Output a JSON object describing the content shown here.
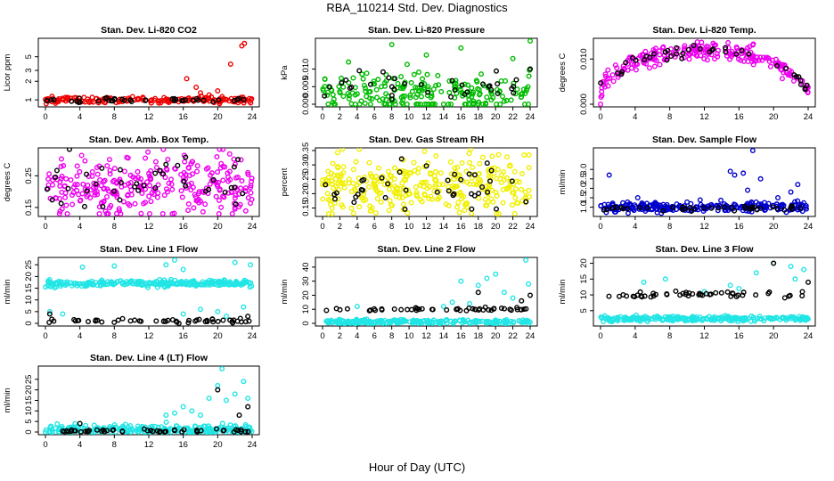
{
  "page": {
    "title": "RBA_110214  Std. Dev. Diagnostics",
    "x_caption": "Hour of Day (UTC)"
  },
  "colors": {
    "black": "#000000",
    "red": "#ee0000",
    "green": "#00bb00",
    "magenta": "#ee00ee",
    "yellow": "#f0f000",
    "blue": "#0000cc",
    "cyan": "#22e5e5"
  },
  "chart_data": [
    {
      "type": "scatter",
      "title": "Stan. Dev. Li-820 CO2",
      "ylabel": "Licor ppm",
      "xlim": [
        0,
        24
      ],
      "x_ticks": [
        "0",
        "4",
        "8",
        "12",
        "16",
        "20",
        "24"
      ],
      "y_scale": "log",
      "ylim": [
        0.85,
        9
      ],
      "y_ticks": [
        "1",
        "2",
        "3",
        "5"
      ],
      "series": [
        {
          "color": "red",
          "base": 1.0,
          "noise": 0.06,
          "n": 170,
          "outliers": [
            [
              16.4,
              2.2
            ],
            [
              17.5,
              1.6
            ],
            [
              18,
              1.3
            ],
            [
              19,
              1.2
            ],
            [
              20,
              1.4
            ],
            [
              21.5,
              3.8
            ],
            [
              22.8,
              7.5
            ],
            [
              23.1,
              8.2
            ]
          ]
        },
        {
          "color": "black",
          "base": 1.0,
          "noise": 0.04,
          "n": 40,
          "outliers": []
        }
      ]
    },
    {
      "type": "scatter",
      "title": "Stan. Dev. Li-820 Pressure",
      "ylabel": "kPa",
      "xlim": [
        0,
        24
      ],
      "x_ticks": [
        "0",
        "2",
        "4",
        "6",
        "8",
        "10",
        "12",
        "14",
        "16",
        "18",
        "20",
        "22",
        "24"
      ],
      "ylim": [
        0,
        0.018
      ],
      "y_ticks": [
        "0.000",
        "0.005",
        "0.010"
      ],
      "series": [
        {
          "color": "green",
          "base": 0.003,
          "noise": 0.003,
          "n": 220,
          "outliers": [
            [
              8,
              0.017
            ],
            [
              3,
              0.012
            ],
            [
              22,
              0.013
            ],
            [
              24,
              0.018
            ],
            [
              12,
              0.014
            ],
            [
              16,
              0.016
            ]
          ]
        },
        {
          "color": "black",
          "base": 0.005,
          "noise": 0.002,
          "n": 35,
          "outliers": [
            [
              24,
              0.01
            ]
          ]
        }
      ]
    },
    {
      "type": "scatter",
      "title": "Stan. Dev. Li-820 Temp.",
      "ylabel": "degrees C",
      "xlim": [
        0,
        24
      ],
      "x_ticks": [
        "0",
        "4",
        "8",
        "12",
        "16",
        "20",
        "24"
      ],
      "ylim": [
        0,
        0.014
      ],
      "y_ticks": [
        "0.000",
        "0.010"
      ],
      "series": [
        {
          "color": "magenta",
          "curve": "arch",
          "peak": 0.012,
          "floor": 0.004,
          "noise": 0.001,
          "n": 230,
          "outliers": [
            [
              0,
              0.0
            ]
          ]
        },
        {
          "color": "black",
          "curve": "arch",
          "peak": 0.012,
          "floor": 0.004,
          "noise": 0.0008,
          "n": 40,
          "outliers": []
        }
      ]
    },
    {
      "type": "scatter",
      "title": "Stan. Dev. Amb. Box Temp.",
      "ylabel": "degrees C",
      "xlim": [
        0,
        24
      ],
      "x_ticks": [
        "0",
        "4",
        "8",
        "12",
        "16",
        "20",
        "24"
      ],
      "ylim": [
        0.13,
        0.33
      ],
      "y_ticks": [
        "0.15",
        "0.25"
      ],
      "series": [
        {
          "color": "magenta",
          "base": 0.22,
          "noise": 0.05,
          "n": 300,
          "outliers": []
        },
        {
          "color": "black",
          "base": 0.22,
          "noise": 0.04,
          "n": 40,
          "outliers": []
        }
      ]
    },
    {
      "type": "scatter",
      "title": "Stan. Dev. Gas Stream RH",
      "ylabel": "percent",
      "xlim": [
        0,
        24
      ],
      "x_ticks": [
        "0",
        "2",
        "4",
        "6",
        "8",
        "10",
        "12",
        "14",
        "16",
        "18",
        "20",
        "22",
        "24"
      ],
      "ylim": [
        0.13,
        0.35
      ],
      "y_ticks": [
        "0.15",
        "0.20",
        "0.25",
        "0.30",
        "0.35"
      ],
      "series": [
        {
          "color": "yellow",
          "base": 0.23,
          "noise": 0.05,
          "n": 320,
          "outliers": []
        },
        {
          "color": "black",
          "base": 0.23,
          "noise": 0.04,
          "n": 40,
          "outliers": []
        }
      ]
    },
    {
      "type": "scatter",
      "title": "Stan. Dev. Sample Flow",
      "ylabel": "ml/min",
      "xlim": [
        0,
        24
      ],
      "x_ticks": [
        "0",
        "4",
        "8",
        "12",
        "16",
        "20",
        "24"
      ],
      "ylim": [
        0.65,
        4.0
      ],
      "y_ticks": [
        "1.0",
        "1.5",
        "2.0",
        "2.5",
        "3.0"
      ],
      "series": [
        {
          "color": "blue",
          "base": 1.0,
          "noise": 0.12,
          "n": 260,
          "outliers": [
            [
              1,
              2.7
            ],
            [
              4.3,
              1.5
            ],
            [
              6.3,
              1.2
            ],
            [
              15,
              2.9
            ],
            [
              15.5,
              2.7
            ],
            [
              16.5,
              2.8
            ],
            [
              17,
              1.9
            ],
            [
              17.6,
              4.0
            ],
            [
              18.5,
              2.5
            ],
            [
              20.5,
              1.5
            ],
            [
              22,
              1.8
            ],
            [
              22.8,
              2.2
            ]
          ]
        },
        {
          "color": "black",
          "base": 0.95,
          "noise": 0.06,
          "n": 40,
          "outliers": []
        }
      ]
    },
    {
      "type": "scatter",
      "title": "Stan. Dev. Line 1 Flow",
      "ylabel": "ml/min",
      "xlim": [
        0,
        24
      ],
      "x_ticks": [
        "0",
        "4",
        "8",
        "12",
        "16",
        "20",
        "24"
      ],
      "ylim": [
        0,
        27
      ],
      "y_ticks": [
        "0",
        "5",
        "10",
        "15",
        "20",
        "25"
      ],
      "series": [
        {
          "color": "cyan",
          "base": 17,
          "noise": 0.6,
          "n": 260,
          "outliers": [
            [
              4.3,
              24
            ],
            [
              8,
              24.5
            ],
            [
              14,
              25
            ],
            [
              15,
              27
            ],
            [
              16,
              23
            ],
            [
              22,
              26
            ],
            [
              23.8,
              25
            ],
            [
              0.5,
              5
            ],
            [
              2,
              4
            ],
            [
              16,
              4
            ],
            [
              18,
              6
            ],
            [
              20,
              5
            ],
            [
              21,
              3
            ],
            [
              23,
              7
            ]
          ]
        },
        {
          "color": "black",
          "base": 1.0,
          "noise": 0.5,
          "n": 50,
          "outliers": [
            [
              0.5,
              4
            ],
            [
              23.5,
              3
            ]
          ]
        }
      ]
    },
    {
      "type": "scatter",
      "title": "Stan. Dev. Line 2 Flow",
      "ylabel": "ml/min",
      "xlim": [
        0,
        24
      ],
      "x_ticks": [
        "0",
        "2",
        "4",
        "6",
        "8",
        "10",
        "12",
        "14",
        "16",
        "18",
        "20",
        "22",
        "24"
      ],
      "ylim": [
        0,
        45
      ],
      "y_ticks": [
        "0",
        "10",
        "20",
        "30",
        "40"
      ],
      "series": [
        {
          "color": "cyan",
          "base": 1,
          "noise": 0.8,
          "n": 260,
          "outliers": [
            [
              16,
              30
            ],
            [
              18,
              27
            ],
            [
              19,
              32
            ],
            [
              20,
              35
            ],
            [
              21,
              22
            ],
            [
              22,
              18
            ],
            [
              23.5,
              45
            ],
            [
              23.8,
              28
            ],
            [
              14,
              12
            ],
            [
              15,
              15
            ],
            [
              17,
              14
            ],
            [
              4,
              12
            ]
          ]
        },
        {
          "color": "black",
          "base": 10,
          "noise": 0.6,
          "n": 50,
          "outliers": [
            [
              18,
              22
            ],
            [
              23,
              16
            ],
            [
              24,
              20
            ]
          ]
        }
      ]
    },
    {
      "type": "scatter",
      "title": "Stan. Dev. Line 3 Flow",
      "ylabel": "ml/min",
      "xlim": [
        0,
        24
      ],
      "x_ticks": [
        "0",
        "4",
        "8",
        "12",
        "16",
        "20",
        "24"
      ],
      "ylim": [
        1,
        21
      ],
      "y_ticks": [
        "5",
        "10",
        "15",
        "20"
      ],
      "series": [
        {
          "color": "cyan",
          "base": 2.5,
          "noise": 0.4,
          "n": 260,
          "outliers": [
            [
              5,
              14
            ],
            [
              7.5,
              15
            ],
            [
              15,
              13
            ],
            [
              16,
              12
            ],
            [
              18,
              17
            ],
            [
              20,
              20
            ],
            [
              22,
              19
            ],
            [
              23.5,
              18
            ],
            [
              22.5,
              15
            ],
            [
              12,
              11
            ]
          ]
        },
        {
          "color": "black",
          "base": 10,
          "noise": 0.5,
          "n": 50,
          "outliers": [
            [
              20,
              20
            ],
            [
              24,
              14
            ]
          ]
        }
      ]
    },
    {
      "type": "scatter",
      "title": "Stan. Dev. Line 4 (LT) Flow",
      "ylabel": "ml/min",
      "xlim": [
        0,
        24
      ],
      "x_ticks": [
        "0",
        "4",
        "8",
        "12",
        "16",
        "20",
        "24"
      ],
      "ylim": [
        0,
        30
      ],
      "y_ticks": [
        "0",
        "5",
        "10",
        "15",
        "20",
        "25"
      ],
      "series": [
        {
          "color": "cyan",
          "base": 1,
          "noise": 1.2,
          "n": 260,
          "outliers": [
            [
              14,
              8
            ],
            [
              15,
              9
            ],
            [
              16,
              12
            ],
            [
              17,
              10
            ],
            [
              18,
              8
            ],
            [
              19,
              16
            ],
            [
              20,
              22
            ],
            [
              20.5,
              30
            ],
            [
              21,
              15
            ],
            [
              22,
              18
            ],
            [
              23,
              24
            ],
            [
              23.5,
              16
            ]
          ]
        },
        {
          "color": "black",
          "base": 0.5,
          "noise": 0.4,
          "n": 50,
          "outliers": [
            [
              20,
              20
            ],
            [
              23.5,
              12
            ],
            [
              22.5,
              8
            ],
            [
              4,
              4
            ]
          ]
        }
      ]
    }
  ]
}
